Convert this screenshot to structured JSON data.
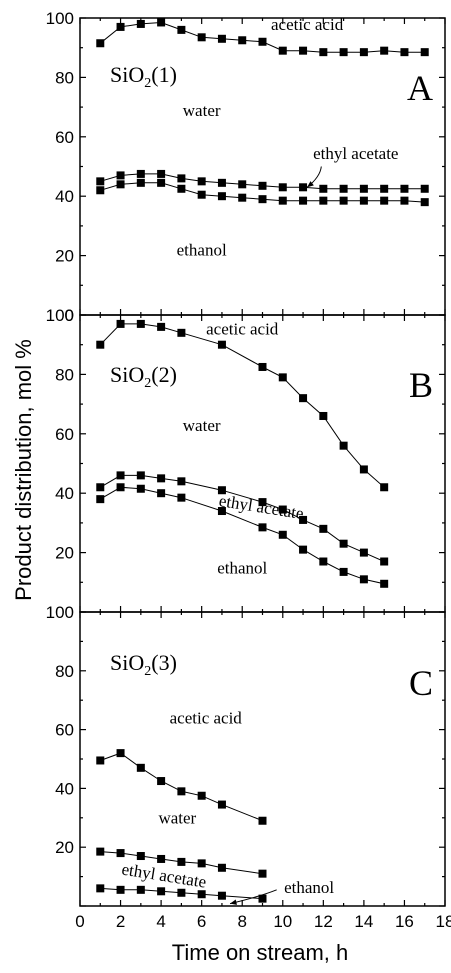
{
  "chart_data": {
    "type": "line",
    "xlabel": "Time on stream, h",
    "ylabel": "Product distribution, mol %",
    "xlim": [
      0,
      18
    ],
    "xticks": [
      "0",
      "2",
      "4",
      "6",
      "8",
      "10",
      "12",
      "14",
      "16",
      "18"
    ],
    "ylim": [
      0,
      100
    ],
    "yticks": [
      "0",
      "20",
      "40",
      "60",
      "80",
      "100"
    ],
    "grid": false,
    "marker": "filled square",
    "panels": [
      {
        "letter": "A",
        "sample_base": "SiO",
        "sample_sub": "2",
        "sample_tail": "(1)",
        "region_labels": [
          {
            "text": "acetic acid",
            "x": 11.2,
            "y": 96.0,
            "style": "normal"
          },
          {
            "text": "water",
            "x": 6.0,
            "y": 67.0,
            "style": "normal"
          },
          {
            "text": "ethyl acetate",
            "x": 13.6,
            "y": 52.5,
            "style": "normal"
          },
          {
            "text": "ethanol",
            "x": 6.0,
            "y": 20.0,
            "style": "normal"
          }
        ],
        "arrows": [
          {
            "from": [
              11.9,
              50.0
            ],
            "to": [
              11.2,
              43.0
            ]
          }
        ],
        "series": [
          {
            "x": [
              1,
              2,
              3,
              4,
              5,
              6,
              7,
              8,
              9,
              10,
              11,
              12,
              13,
              14,
              15,
              16,
              17
            ],
            "values": [
              91.5,
              97,
              98,
              98.5,
              96,
              93.5,
              93,
              92.5,
              92,
              89,
              89,
              88.5,
              88.5,
              88.5,
              89,
              88.5,
              88.5
            ]
          },
          {
            "x": [
              1,
              2,
              3,
              4,
              5,
              6,
              7,
              8,
              9,
              10,
              11,
              12,
              13,
              14,
              15,
              16,
              17
            ],
            "values": [
              45,
              47,
              47.5,
              47.5,
              46,
              45,
              44.5,
              44,
              43.5,
              43,
              43,
              42.5,
              42.5,
              42.5,
              42.5,
              42.5,
              42.5
            ]
          },
          {
            "x": [
              1,
              2,
              3,
              4,
              5,
              6,
              7,
              8,
              9,
              10,
              11,
              12,
              13,
              14,
              15,
              16,
              17
            ],
            "values": [
              42,
              44,
              44.5,
              44.5,
              42.5,
              40.5,
              40,
              39.5,
              39,
              38.5,
              38.5,
              38.5,
              38.5,
              38.5,
              38.5,
              38.5,
              38
            ]
          }
        ]
      },
      {
        "letter": "B",
        "sample_base": "SiO",
        "sample_sub": "2",
        "sample_tail": "(2)",
        "region_labels": [
          {
            "text": "acetic acid",
            "x": 8.0,
            "y": 93.5,
            "style": "normal"
          },
          {
            "text": "water",
            "x": 6.0,
            "y": 61.0,
            "style": "normal"
          },
          {
            "text": "ethyl acetate",
            "x": 8.9,
            "y": 33.5,
            "style": "tilted"
          },
          {
            "text": "ethanol",
            "x": 8.0,
            "y": 13.0,
            "style": "normal"
          }
        ],
        "arrows": [],
        "series": [
          {
            "x": [
              1,
              2,
              3,
              4,
              5,
              7,
              9,
              10,
              11,
              12,
              13,
              14,
              15
            ],
            "values": [
              90,
              97,
              97,
              96,
              94,
              90,
              82.5,
              79,
              72,
              66,
              56,
              48,
              42
            ]
          },
          {
            "x": [
              1,
              2,
              3,
              4,
              5,
              7,
              9,
              10,
              11,
              12,
              13,
              14,
              15
            ],
            "values": [
              42,
              46,
              46,
              45,
              44,
              41,
              37,
              34.5,
              31,
              28,
              23,
              20,
              17
            ]
          },
          {
            "x": [
              1,
              2,
              3,
              4,
              5,
              7,
              9,
              10,
              11,
              12,
              13,
              14,
              15
            ],
            "values": [
              38,
              42,
              41.5,
              40,
              38.5,
              34,
              28.5,
              26,
              21,
              17,
              13.5,
              11,
              9.5
            ]
          }
        ]
      },
      {
        "letter": "C",
        "sample_base": "SiO",
        "sample_sub": "2",
        "sample_tail": "(3)",
        "region_labels": [
          {
            "text": "acetic acid",
            "x": 6.2,
            "y": 62.0,
            "style": "normal"
          },
          {
            "text": "water",
            "x": 4.8,
            "y": 28.0,
            "style": "normal"
          },
          {
            "text": "ethyl acetate",
            "x": 4.1,
            "y": 8.5,
            "style": "tilted"
          },
          {
            "text": "ethanol",
            "x": 11.3,
            "y": 4.5,
            "style": "normal"
          }
        ],
        "arrows": [
          {
            "from": [
              9.7,
              5.5
            ],
            "to": [
              7.4,
              0.8
            ]
          }
        ],
        "series": [
          {
            "x": [
              1,
              2,
              3,
              4,
              5,
              6,
              7,
              9
            ],
            "values": [
              49.5,
              52,
              47,
              42.5,
              39,
              37.5,
              34.5,
              29
            ]
          },
          {
            "x": [
              1,
              2,
              3,
              4,
              5,
              6,
              7,
              9
            ],
            "values": [
              18.5,
              18,
              17,
              16,
              15,
              14.5,
              13,
              11
            ]
          },
          {
            "x": [
              1,
              2,
              3,
              4,
              5,
              6,
              7,
              9
            ],
            "values": [
              6,
              5.5,
              5.5,
              5,
              4.5,
              4,
              3.5,
              2.5
            ]
          }
        ]
      }
    ]
  }
}
